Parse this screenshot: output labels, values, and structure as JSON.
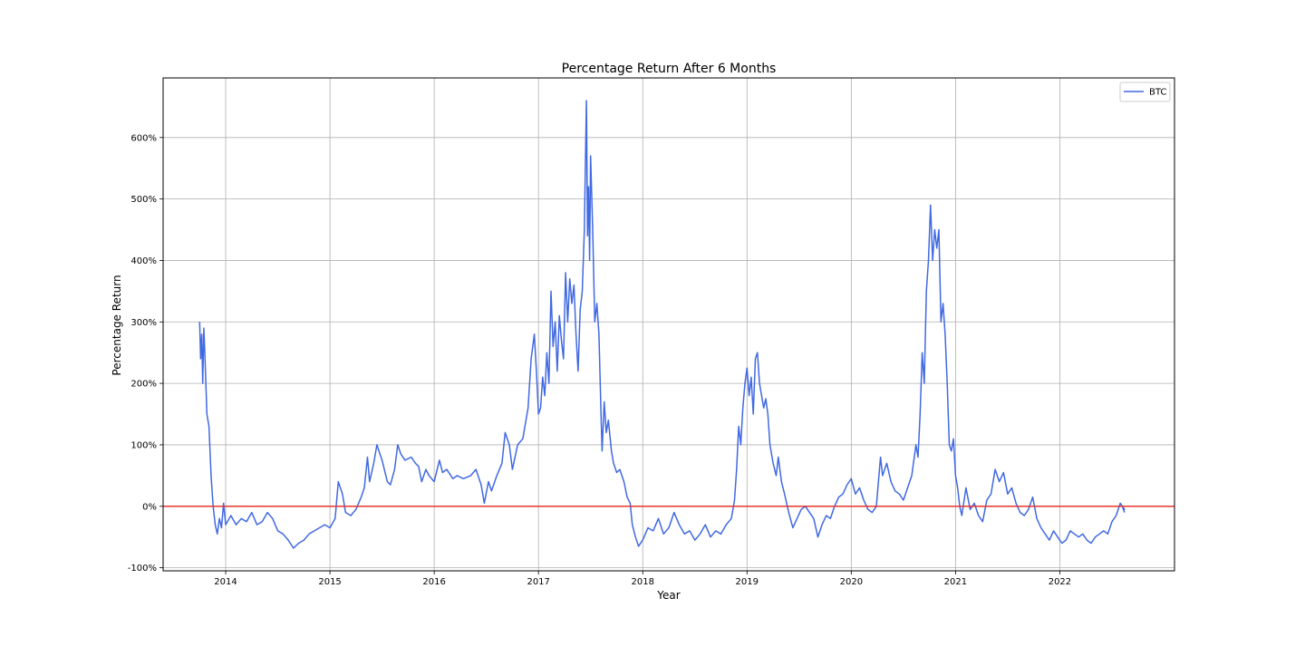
{
  "chart_data": {
    "type": "line",
    "title": "Percentage Return After 6 Months",
    "xlabel": "Year",
    "ylabel": "Percentage Return",
    "xlim": [
      2013.4,
      2023.1
    ],
    "ylim": [
      -105,
      697
    ],
    "x_ticks": [
      {
        "value": 2014,
        "label": "2014"
      },
      {
        "value": 2015,
        "label": "2015"
      },
      {
        "value": 2016,
        "label": "2016"
      },
      {
        "value": 2017,
        "label": "2017"
      },
      {
        "value": 2018,
        "label": "2018"
      },
      {
        "value": 2019,
        "label": "2019"
      },
      {
        "value": 2020,
        "label": "2020"
      },
      {
        "value": 2021,
        "label": "2021"
      },
      {
        "value": 2022,
        "label": "2022"
      }
    ],
    "y_ticks": [
      {
        "value": -100,
        "label": "-100%"
      },
      {
        "value": 0,
        "label": "0%"
      },
      {
        "value": 100,
        "label": "100%"
      },
      {
        "value": 200,
        "label": "200%"
      },
      {
        "value": 300,
        "label": "300%"
      },
      {
        "value": 400,
        "label": "400%"
      },
      {
        "value": 500,
        "label": "500%"
      },
      {
        "value": 600,
        "label": "600%"
      }
    ],
    "grid": true,
    "legend_position": "top-right",
    "reference_line": {
      "y": 0,
      "color": "#e8352d"
    },
    "series": [
      {
        "name": "BTC",
        "color": "#4169e1",
        "points": [
          [
            2013.75,
            300
          ],
          [
            2013.76,
            240
          ],
          [
            2013.77,
            280
          ],
          [
            2013.78,
            200
          ],
          [
            2013.79,
            290
          ],
          [
            2013.8,
            250
          ],
          [
            2013.82,
            150
          ],
          [
            2013.84,
            130
          ],
          [
            2013.86,
            50
          ],
          [
            2013.88,
            0
          ],
          [
            2013.9,
            -30
          ],
          [
            2013.92,
            -45
          ],
          [
            2013.94,
            -20
          ],
          [
            2013.96,
            -35
          ],
          [
            2013.98,
            5
          ],
          [
            2014.0,
            -30
          ],
          [
            2014.05,
            -15
          ],
          [
            2014.1,
            -30
          ],
          [
            2014.15,
            -20
          ],
          [
            2014.2,
            -25
          ],
          [
            2014.25,
            -10
          ],
          [
            2014.3,
            -30
          ],
          [
            2014.35,
            -25
          ],
          [
            2014.4,
            -10
          ],
          [
            2014.45,
            -20
          ],
          [
            2014.5,
            -40
          ],
          [
            2014.55,
            -45
          ],
          [
            2014.6,
            -55
          ],
          [
            2014.65,
            -68
          ],
          [
            2014.7,
            -60
          ],
          [
            2014.75,
            -55
          ],
          [
            2014.8,
            -45
          ],
          [
            2014.85,
            -40
          ],
          [
            2014.9,
            -35
          ],
          [
            2014.95,
            -30
          ],
          [
            2015.0,
            -35
          ],
          [
            2015.05,
            -20
          ],
          [
            2015.08,
            40
          ],
          [
            2015.1,
            30
          ],
          [
            2015.12,
            20
          ],
          [
            2015.15,
            -10
          ],
          [
            2015.2,
            -15
          ],
          [
            2015.25,
            -5
          ],
          [
            2015.3,
            15
          ],
          [
            2015.33,
            30
          ],
          [
            2015.36,
            80
          ],
          [
            2015.38,
            40
          ],
          [
            2015.42,
            70
          ],
          [
            2015.45,
            100
          ],
          [
            2015.48,
            85
          ],
          [
            2015.5,
            75
          ],
          [
            2015.55,
            40
          ],
          [
            2015.58,
            35
          ],
          [
            2015.62,
            60
          ],
          [
            2015.65,
            100
          ],
          [
            2015.68,
            85
          ],
          [
            2015.72,
            75
          ],
          [
            2015.78,
            80
          ],
          [
            2015.82,
            70
          ],
          [
            2015.85,
            65
          ],
          [
            2015.88,
            40
          ],
          [
            2015.92,
            60
          ],
          [
            2015.95,
            50
          ],
          [
            2016.0,
            40
          ],
          [
            2016.05,
            75
          ],
          [
            2016.08,
            55
          ],
          [
            2016.12,
            60
          ],
          [
            2016.18,
            45
          ],
          [
            2016.22,
            50
          ],
          [
            2016.28,
            45
          ],
          [
            2016.35,
            50
          ],
          [
            2016.4,
            60
          ],
          [
            2016.45,
            35
          ],
          [
            2016.48,
            5
          ],
          [
            2016.52,
            40
          ],
          [
            2016.55,
            25
          ],
          [
            2016.6,
            50
          ],
          [
            2016.65,
            70
          ],
          [
            2016.68,
            120
          ],
          [
            2016.72,
            100
          ],
          [
            2016.75,
            60
          ],
          [
            2016.8,
            100
          ],
          [
            2016.85,
            110
          ],
          [
            2016.9,
            160
          ],
          [
            2016.93,
            240
          ],
          [
            2016.96,
            280
          ],
          [
            2016.98,
            220
          ],
          [
            2017.0,
            150
          ],
          [
            2017.02,
            160
          ],
          [
            2017.04,
            210
          ],
          [
            2017.06,
            180
          ],
          [
            2017.08,
            250
          ],
          [
            2017.1,
            200
          ],
          [
            2017.12,
            350
          ],
          [
            2017.14,
            260
          ],
          [
            2017.16,
            300
          ],
          [
            2017.18,
            220
          ],
          [
            2017.2,
            310
          ],
          [
            2017.22,
            270
          ],
          [
            2017.24,
            240
          ],
          [
            2017.26,
            380
          ],
          [
            2017.28,
            300
          ],
          [
            2017.3,
            370
          ],
          [
            2017.32,
            330
          ],
          [
            2017.34,
            360
          ],
          [
            2017.36,
            280
          ],
          [
            2017.38,
            220
          ],
          [
            2017.4,
            320
          ],
          [
            2017.42,
            350
          ],
          [
            2017.44,
            450
          ],
          [
            2017.46,
            660
          ],
          [
            2017.47,
            440
          ],
          [
            2017.48,
            520
          ],
          [
            2017.49,
            400
          ],
          [
            2017.5,
            570
          ],
          [
            2017.52,
            450
          ],
          [
            2017.54,
            300
          ],
          [
            2017.56,
            330
          ],
          [
            2017.58,
            280
          ],
          [
            2017.6,
            150
          ],
          [
            2017.61,
            90
          ],
          [
            2017.63,
            170
          ],
          [
            2017.65,
            120
          ],
          [
            2017.67,
            140
          ],
          [
            2017.7,
            90
          ],
          [
            2017.72,
            70
          ],
          [
            2017.75,
            55
          ],
          [
            2017.78,
            60
          ],
          [
            2017.82,
            40
          ],
          [
            2017.85,
            15
          ],
          [
            2017.88,
            5
          ],
          [
            2017.9,
            -30
          ],
          [
            2017.93,
            -50
          ],
          [
            2017.96,
            -65
          ],
          [
            2018.0,
            -55
          ],
          [
            2018.05,
            -35
          ],
          [
            2018.1,
            -40
          ],
          [
            2018.15,
            -20
          ],
          [
            2018.2,
            -45
          ],
          [
            2018.25,
            -35
          ],
          [
            2018.3,
            -10
          ],
          [
            2018.35,
            -30
          ],
          [
            2018.4,
            -45
          ],
          [
            2018.45,
            -40
          ],
          [
            2018.5,
            -55
          ],
          [
            2018.55,
            -45
          ],
          [
            2018.6,
            -30
          ],
          [
            2018.65,
            -50
          ],
          [
            2018.7,
            -40
          ],
          [
            2018.75,
            -45
          ],
          [
            2018.8,
            -30
          ],
          [
            2018.85,
            -20
          ],
          [
            2018.88,
            10
          ],
          [
            2018.9,
            60
          ],
          [
            2018.92,
            130
          ],
          [
            2018.94,
            100
          ],
          [
            2018.96,
            160
          ],
          [
            2018.98,
            200
          ],
          [
            2019.0,
            225
          ],
          [
            2019.02,
            180
          ],
          [
            2019.04,
            210
          ],
          [
            2019.06,
            150
          ],
          [
            2019.08,
            240
          ],
          [
            2019.1,
            250
          ],
          [
            2019.12,
            200
          ],
          [
            2019.14,
            180
          ],
          [
            2019.16,
            160
          ],
          [
            2019.18,
            175
          ],
          [
            2019.2,
            150
          ],
          [
            2019.22,
            100
          ],
          [
            2019.25,
            70
          ],
          [
            2019.28,
            50
          ],
          [
            2019.3,
            80
          ],
          [
            2019.33,
            40
          ],
          [
            2019.36,
            20
          ],
          [
            2019.4,
            -10
          ],
          [
            2019.44,
            -35
          ],
          [
            2019.48,
            -20
          ],
          [
            2019.52,
            -5
          ],
          [
            2019.56,
            0
          ],
          [
            2019.6,
            -10
          ],
          [
            2019.64,
            -20
          ],
          [
            2019.68,
            -50
          ],
          [
            2019.72,
            -30
          ],
          [
            2019.76,
            -15
          ],
          [
            2019.8,
            -20
          ],
          [
            2019.84,
            0
          ],
          [
            2019.88,
            15
          ],
          [
            2019.92,
            20
          ],
          [
            2019.96,
            35
          ],
          [
            2020.0,
            45
          ],
          [
            2020.04,
            20
          ],
          [
            2020.08,
            30
          ],
          [
            2020.12,
            10
          ],
          [
            2020.16,
            -5
          ],
          [
            2020.2,
            -10
          ],
          [
            2020.24,
            0
          ],
          [
            2020.28,
            80
          ],
          [
            2020.3,
            50
          ],
          [
            2020.34,
            70
          ],
          [
            2020.38,
            40
          ],
          [
            2020.42,
            25
          ],
          [
            2020.46,
            20
          ],
          [
            2020.5,
            10
          ],
          [
            2020.54,
            30
          ],
          [
            2020.58,
            50
          ],
          [
            2020.62,
            100
          ],
          [
            2020.64,
            80
          ],
          [
            2020.66,
            150
          ],
          [
            2020.68,
            250
          ],
          [
            2020.7,
            200
          ],
          [
            2020.72,
            350
          ],
          [
            2020.74,
            400
          ],
          [
            2020.76,
            490
          ],
          [
            2020.78,
            400
          ],
          [
            2020.8,
            450
          ],
          [
            2020.82,
            420
          ],
          [
            2020.84,
            450
          ],
          [
            2020.86,
            300
          ],
          [
            2020.88,
            330
          ],
          [
            2020.9,
            280
          ],
          [
            2020.92,
            200
          ],
          [
            2020.94,
            100
          ],
          [
            2020.96,
            90
          ],
          [
            2020.98,
            110
          ],
          [
            2021.0,
            50
          ],
          [
            2021.02,
            30
          ],
          [
            2021.04,
            0
          ],
          [
            2021.06,
            -15
          ],
          [
            2021.1,
            30
          ],
          [
            2021.14,
            -5
          ],
          [
            2021.18,
            5
          ],
          [
            2021.22,
            -15
          ],
          [
            2021.26,
            -25
          ],
          [
            2021.3,
            10
          ],
          [
            2021.34,
            20
          ],
          [
            2021.38,
            60
          ],
          [
            2021.42,
            40
          ],
          [
            2021.46,
            55
          ],
          [
            2021.5,
            20
          ],
          [
            2021.54,
            30
          ],
          [
            2021.58,
            5
          ],
          [
            2021.62,
            -10
          ],
          [
            2021.66,
            -15
          ],
          [
            2021.7,
            -5
          ],
          [
            2021.74,
            15
          ],
          [
            2021.78,
            -20
          ],
          [
            2021.82,
            -35
          ],
          [
            2021.86,
            -45
          ],
          [
            2021.9,
            -55
          ],
          [
            2021.94,
            -40
          ],
          [
            2021.98,
            -50
          ],
          [
            2022.02,
            -60
          ],
          [
            2022.06,
            -55
          ],
          [
            2022.1,
            -40
          ],
          [
            2022.14,
            -45
          ],
          [
            2022.18,
            -50
          ],
          [
            2022.22,
            -45
          ],
          [
            2022.26,
            -55
          ],
          [
            2022.3,
            -60
          ],
          [
            2022.34,
            -50
          ],
          [
            2022.38,
            -45
          ],
          [
            2022.42,
            -40
          ],
          [
            2022.46,
            -45
          ],
          [
            2022.5,
            -25
          ],
          [
            2022.54,
            -15
          ],
          [
            2022.58,
            5
          ],
          [
            2022.62,
            -5
          ],
          [
            2022.6,
            0
          ],
          [
            2022.62,
            -10
          ]
        ]
      }
    ]
  }
}
